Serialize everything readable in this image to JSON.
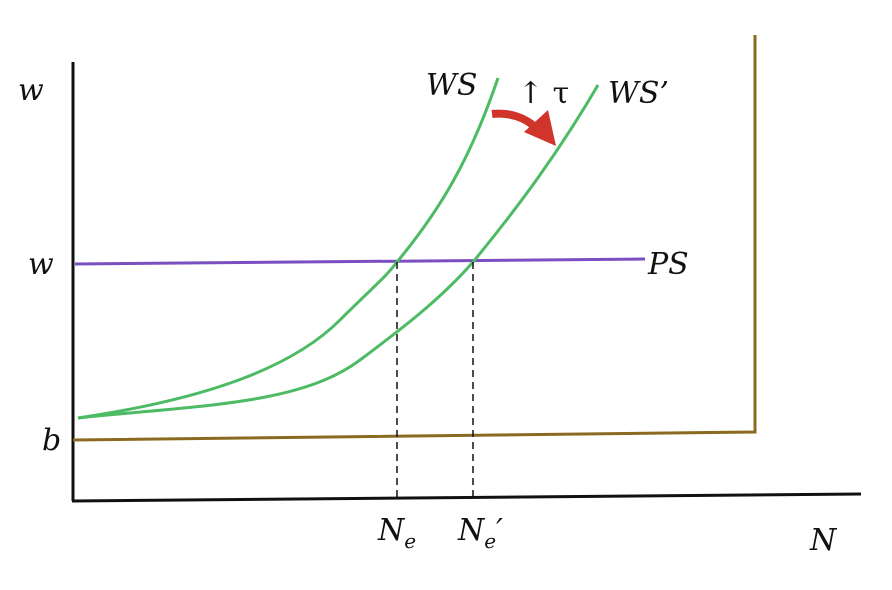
{
  "labels": {
    "y_axis": "w",
    "wage_level": "w",
    "benefit": "b",
    "price_setting": "PS",
    "wage_setting": "WS",
    "wage_setting_shifted": "WS’",
    "shift_cause": "↑ τ",
    "employment": "N",
    "employment_sub": "e",
    "employment_shifted": "N",
    "employment_shifted_sub": "e",
    "employment_shifted_prime": "′",
    "x_axis": "N"
  },
  "colors": {
    "ws_curves": "#4cbb64",
    "ps_line": "#7a4fc0",
    "labor_force_line": "#8a6a20",
    "shift_arrow": "#d0342a",
    "axes": "#111111"
  }
}
